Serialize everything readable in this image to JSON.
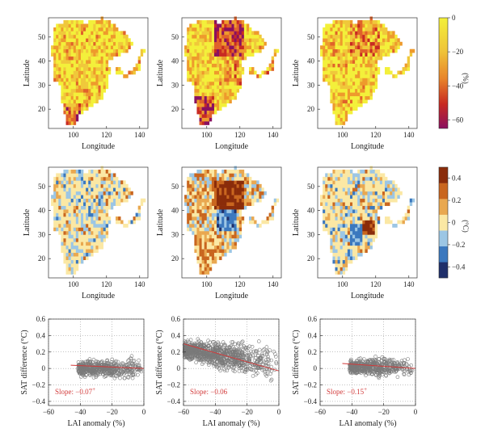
{
  "colors": {
    "lai_scale": [
      "#f3f03a",
      "#f0c83a",
      "#ee9a2c",
      "#e0622a",
      "#c82a22",
      "#8a1060"
    ],
    "sat_scale": [
      "#1f2f6a",
      "#3b78be",
      "#9cc6e4",
      "#fbe8a4",
      "#e9a850",
      "#c9661f",
      "#8a2c0a"
    ],
    "scatter_point": "#7a7a7a",
    "fit_line": "#d23a3a",
    "slope_text": "#d23a3a"
  },
  "colorbars": {
    "lai": {
      "unit": "(%)",
      "ticks": [
        "0",
        "−20",
        "−40",
        "−60"
      ],
      "tick_values": [
        0,
        -20,
        -40,
        -60
      ],
      "range": [
        -65,
        0
      ]
    },
    "sat": {
      "unit": "(°C)",
      "ticks": [
        "0.4",
        "0.2",
        "0",
        "−0.2",
        "−0.4"
      ],
      "tick_values": [
        0.4,
        0.2,
        0,
        -0.2,
        -0.4
      ],
      "range": [
        -0.5,
        0.5
      ]
    }
  },
  "map_axes": {
    "xlabel": "Longitude",
    "ylabel": "Latitude",
    "xticks": [
      "100",
      "120",
      "140"
    ],
    "xtick_values": [
      100,
      120,
      140
    ],
    "yticks": [
      "20",
      "30",
      "40",
      "50"
    ],
    "ytick_values": [
      20,
      30,
      40,
      50
    ],
    "xlim": [
      85,
      145
    ],
    "ylim": [
      12,
      58
    ]
  },
  "scatter_axes": {
    "xlabel": "LAI anomaly (%)",
    "ylabel": "SAT difference (°C)",
    "xticks": [
      "−60",
      "−40",
      "−20",
      "0"
    ],
    "xtick_values": [
      -60,
      -40,
      -20,
      0
    ],
    "yticks": [
      "0.6",
      "0.4",
      "0.2",
      "0",
      "−0.2",
      "−0.4"
    ],
    "ytick_values": [
      0.6,
      0.4,
      0.2,
      0,
      -0.2,
      -0.4
    ],
    "xlim": [
      -60,
      0
    ],
    "ylim": [
      -0.45,
      0.6
    ]
  },
  "chart_data": [
    {
      "type": "heatmap",
      "row": "LAI anomaly",
      "panel": 1,
      "colorbar": "lai",
      "xlim": [
        85,
        145
      ],
      "ylim": [
        12,
        58
      ]
    },
    {
      "type": "heatmap",
      "row": "LAI anomaly",
      "panel": 2,
      "colorbar": "lai",
      "xlim": [
        85,
        145
      ],
      "ylim": [
        12,
        58
      ]
    },
    {
      "type": "heatmap",
      "row": "LAI anomaly",
      "panel": 3,
      "colorbar": "lai",
      "xlim": [
        85,
        145
      ],
      "ylim": [
        12,
        58
      ]
    },
    {
      "type": "heatmap",
      "row": "SAT difference",
      "panel": 1,
      "colorbar": "sat",
      "xlim": [
        85,
        145
      ],
      "ylim": [
        12,
        58
      ]
    },
    {
      "type": "heatmap",
      "row": "SAT difference",
      "panel": 2,
      "colorbar": "sat",
      "xlim": [
        85,
        145
      ],
      "ylim": [
        12,
        58
      ]
    },
    {
      "type": "heatmap",
      "row": "SAT difference",
      "panel": 3,
      "colorbar": "sat",
      "xlim": [
        85,
        145
      ],
      "ylim": [
        12,
        58
      ]
    },
    {
      "type": "scatter",
      "panel": 1,
      "xlim": [
        -60,
        0
      ],
      "ylim": [
        -0.45,
        0.6
      ],
      "slope_label": "Slope: −0.07",
      "slope_marker": "+",
      "fit_line": {
        "x": [
          -46,
          0
        ],
        "y": [
          0.04,
          0.0
        ]
      },
      "point_cloud": {
        "x_range": [
          -46,
          0
        ],
        "y_center": 0.0,
        "y_spread": 0.18
      }
    },
    {
      "type": "scatter",
      "panel": 2,
      "xlim": [
        -60,
        0
      ],
      "ylim": [
        -0.45,
        0.6
      ],
      "slope_label": "Slope: −0.06",
      "slope_marker": "",
      "fit_line": {
        "x": [
          -60,
          0
        ],
        "y": [
          0.3,
          -0.03
        ]
      },
      "point_cloud": {
        "x_range": [
          -60,
          0
        ],
        "y_center": 0.08,
        "y_spread": 0.3
      }
    },
    {
      "type": "scatter",
      "panel": 3,
      "xlim": [
        -60,
        0
      ],
      "ylim": [
        -0.45,
        0.6
      ],
      "slope_label": "Slope: −0.15",
      "slope_marker": "+",
      "fit_line": {
        "x": [
          -46,
          0
        ],
        "y": [
          0.06,
          0.0
        ]
      },
      "point_cloud": {
        "x_range": [
          -46,
          0
        ],
        "y_center": 0.02,
        "y_spread": 0.18
      }
    }
  ]
}
